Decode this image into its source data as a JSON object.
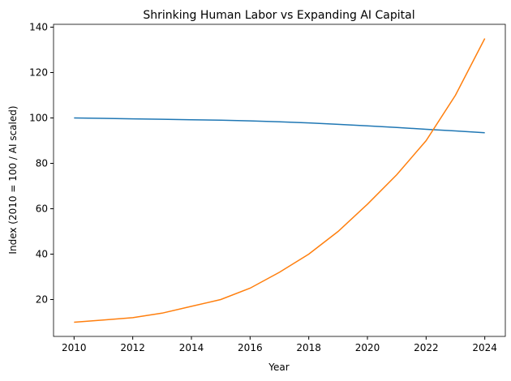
{
  "chart_data": {
    "type": "line",
    "title": "Shrinking Human Labor vs Expanding AI Capital",
    "xlabel": "Year",
    "ylabel": "Index (2010 = 100 / AI scaled)",
    "x": [
      2010,
      2011,
      2012,
      2013,
      2014,
      2015,
      2016,
      2017,
      2018,
      2019,
      2020,
      2021,
      2022,
      2023,
      2024
    ],
    "series": [
      {
        "color": "#1f77b4",
        "values": [
          100,
          99.8,
          99.6,
          99.4,
          99.2,
          99.0,
          98.7,
          98.3,
          97.8,
          97.2,
          96.5,
          95.8,
          95.0,
          94.3,
          93.5
        ]
      },
      {
        "color": "#ff7f0e",
        "values": [
          10,
          11,
          12,
          14,
          17,
          20,
          25,
          32,
          40,
          50,
          62,
          75,
          90,
          110,
          135
        ]
      }
    ],
    "xlim": [
      2009.3,
      2024.7
    ],
    "ylim": [
      3.75,
      141.25
    ],
    "xticks": [
      2010,
      2012,
      2014,
      2016,
      2018,
      2020,
      2022,
      2024
    ],
    "yticks": [
      20,
      40,
      60,
      80,
      100,
      120,
      140
    ],
    "grid": false
  }
}
